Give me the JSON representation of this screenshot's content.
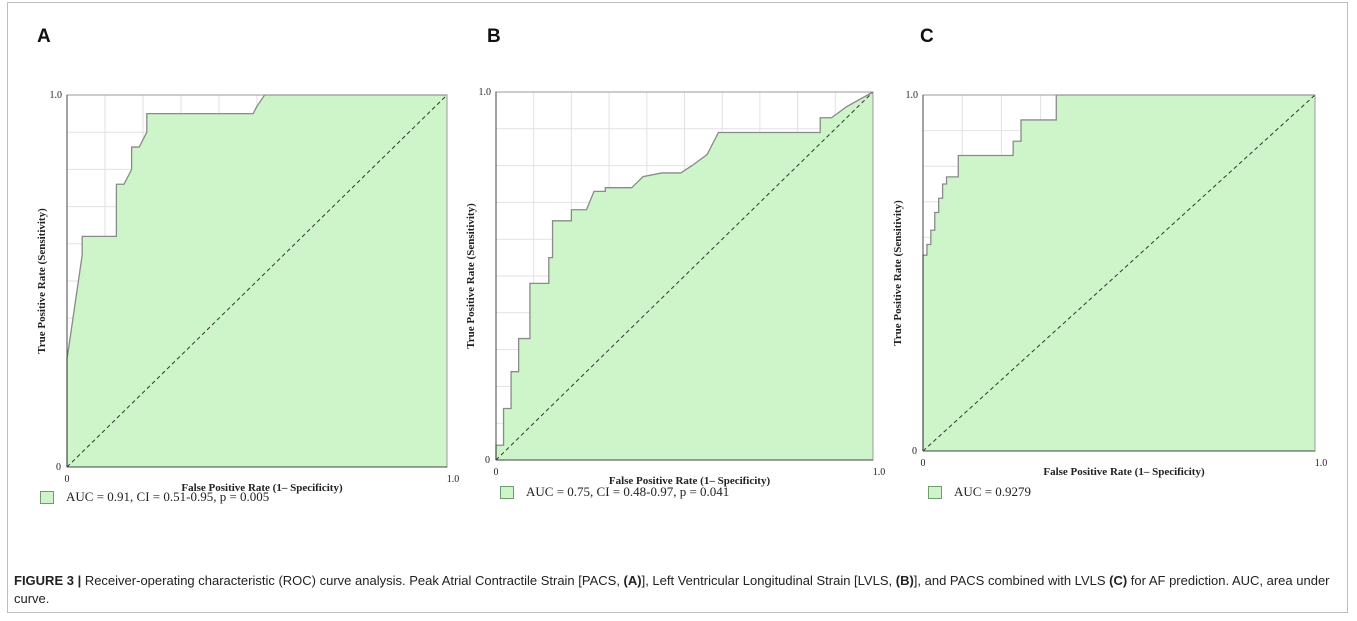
{
  "colors": {
    "fill": "#cdf5c9",
    "curve": "#8a8a8a",
    "diagonal": "#333333",
    "grid": "#e2e2e2"
  },
  "chart_data": [
    {
      "panel": "A",
      "type": "area",
      "xlabel": "False Positive Rate (1– Specificity)",
      "ylabel": "True Positive Rate (Sensitivity)",
      "xlim": [
        0,
        1
      ],
      "ylim": [
        0,
        1
      ],
      "x_ticks": [
        "0",
        "1.0"
      ],
      "y_ticks": [
        "0",
        "1.0"
      ],
      "grid": true,
      "reference_line": "diagonal",
      "series": [
        {
          "x": [
            0,
            0,
            0.04,
            0.04,
            0.13,
            0.13,
            0.15,
            0.17,
            0.17,
            0.19,
            0.21,
            0.21,
            0.49,
            0.5,
            0.52,
            1
          ],
          "y": [
            0,
            0.29,
            0.57,
            0.62,
            0.62,
            0.76,
            0.76,
            0.8,
            0.86,
            0.86,
            0.9,
            0.95,
            0.95,
            0.97,
            1,
            1
          ]
        }
      ],
      "legend": "AUC = 0.91, CI =  0.51-0.95, p = 0.005"
    },
    {
      "panel": "B",
      "type": "area",
      "xlabel": "False Positive Rate (1– Specificity)",
      "ylabel": "True Positive Rate (Sensitivity)",
      "xlim": [
        0,
        1
      ],
      "ylim": [
        0,
        1
      ],
      "x_ticks": [
        "0",
        "1.0"
      ],
      "y_ticks": [
        "0",
        "1.0"
      ],
      "grid": true,
      "reference_line": "diagonal",
      "series": [
        {
          "x": [
            0,
            0,
            0.02,
            0.02,
            0.04,
            0.04,
            0.06,
            0.06,
            0.09,
            0.09,
            0.14,
            0.14,
            0.15,
            0.15,
            0.2,
            0.2,
            0.24,
            0.26,
            0.29,
            0.29,
            0.36,
            0.39,
            0.44,
            0.49,
            0.52,
            0.52,
            0.56,
            0.57,
            0.59,
            0.67,
            0.72,
            0.86,
            0.86,
            0.89,
            0.93,
            1
          ],
          "y": [
            0,
            0.04,
            0.04,
            0.14,
            0.14,
            0.24,
            0.24,
            0.33,
            0.33,
            0.48,
            0.48,
            0.55,
            0.55,
            0.65,
            0.65,
            0.68,
            0.68,
            0.73,
            0.73,
            0.74,
            0.74,
            0.77,
            0.78,
            0.78,
            0.8,
            0.8,
            0.83,
            0.85,
            0.89,
            0.89,
            0.89,
            0.89,
            0.93,
            0.93,
            0.96,
            1
          ]
        }
      ],
      "legend": "AUC = 0.75, CI = 0.48-0.97, p = 0.041"
    },
    {
      "panel": "C",
      "type": "area",
      "xlabel": "False Positive Rate (1– Specificity)",
      "ylabel": "True Positive Rate (Sensitivity)",
      "xlim": [
        0,
        1
      ],
      "ylim": [
        0,
        1
      ],
      "x_ticks": [
        "0",
        "1.0"
      ],
      "y_ticks": [
        "0",
        "1.0"
      ],
      "grid": true,
      "reference_line": "diagonal",
      "series": [
        {
          "x": [
            0,
            0,
            0.01,
            0.01,
            0.02,
            0.02,
            0.03,
            0.03,
            0.04,
            0.04,
            0.05,
            0.05,
            0.06,
            0.06,
            0.09,
            0.09,
            0.23,
            0.23,
            0.25,
            0.25,
            0.34,
            0.34,
            1
          ],
          "y": [
            0,
            0.55,
            0.55,
            0.58,
            0.58,
            0.62,
            0.62,
            0.67,
            0.67,
            0.71,
            0.71,
            0.75,
            0.75,
            0.77,
            0.77,
            0.83,
            0.83,
            0.87,
            0.87,
            0.93,
            0.93,
            1,
            1
          ]
        }
      ],
      "legend": "AUC = 0.9279"
    }
  ],
  "caption": {
    "label": "FIGURE 3 |",
    "parts": [
      " Receiver-operating characteristic (ROC) curve analysis. Peak Atrial Contractile Strain [PACS, ",
      "(A)",
      "], Left Ventricular Longitudinal Strain [LVLS, ",
      "(B)",
      "], and PACS combined with LVLS ",
      "(C)",
      " for AF prediction. AUC, area under curve."
    ]
  }
}
